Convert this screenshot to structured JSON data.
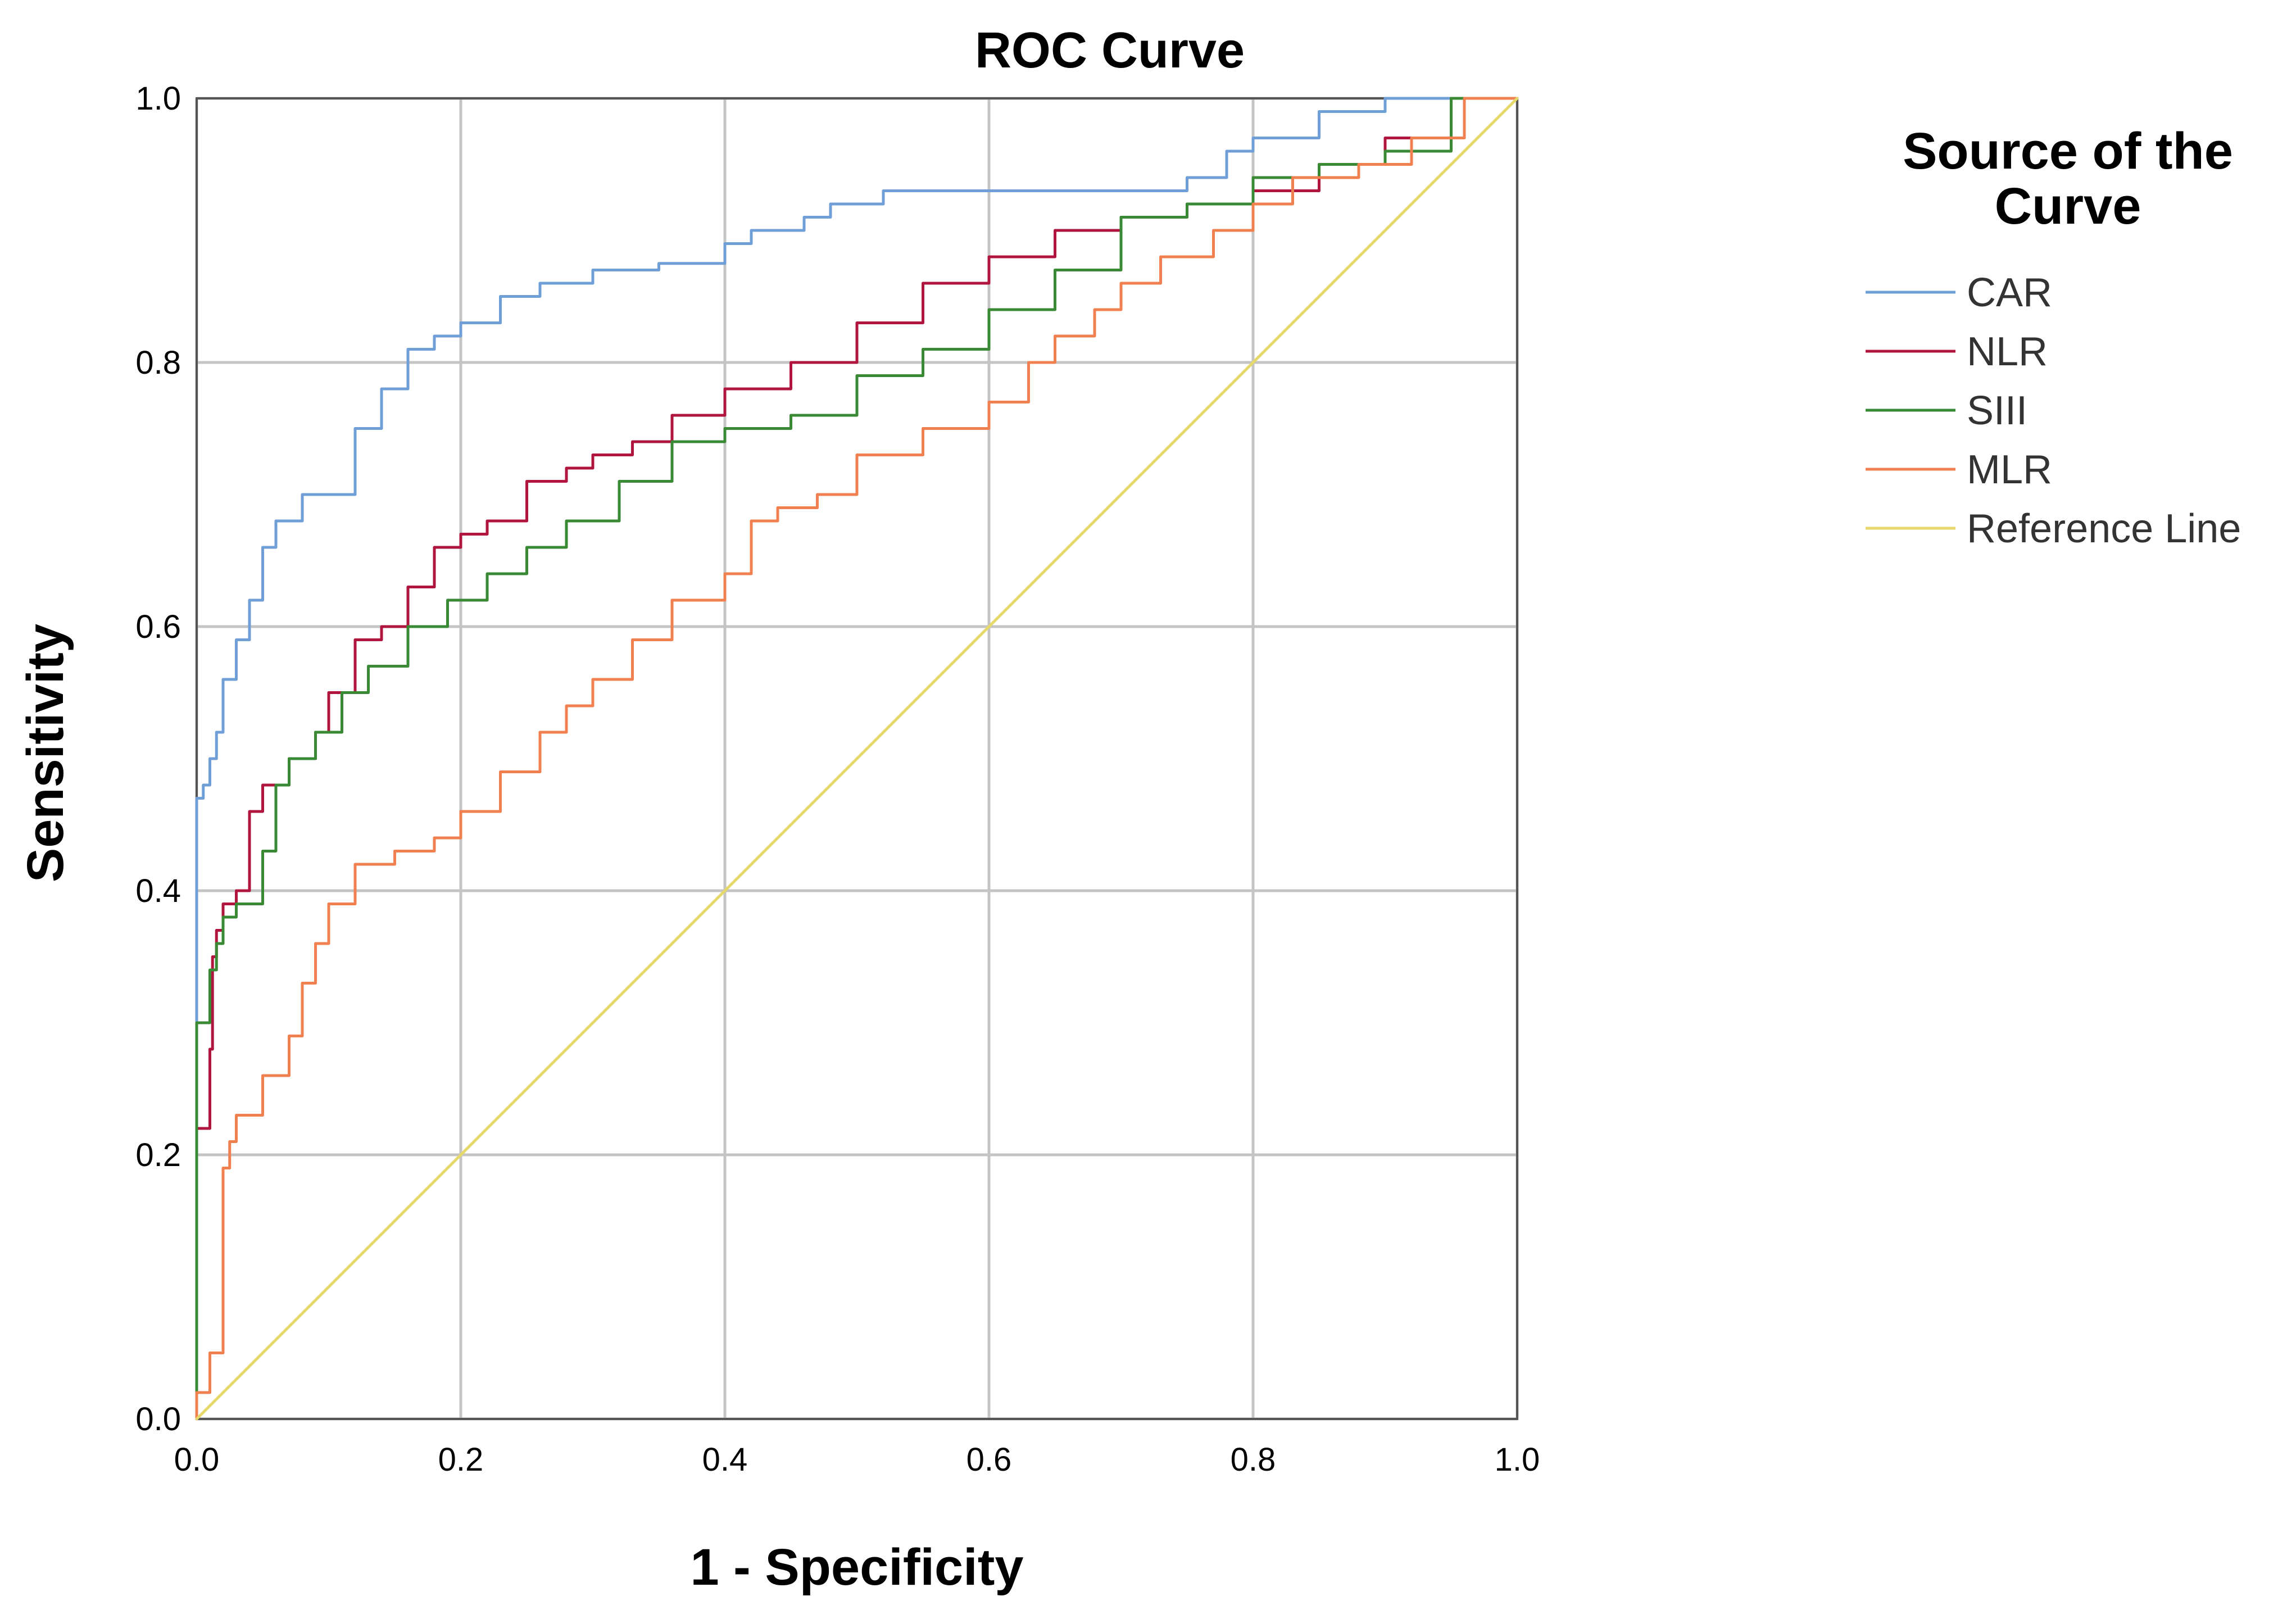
{
  "chart_data": {
    "type": "line",
    "title": "ROC Curve",
    "xlabel": "1 - Specificity",
    "ylabel": "Sensitivity",
    "xlim": [
      0,
      1
    ],
    "ylim": [
      0,
      1
    ],
    "grid": true,
    "x_ticks": [
      "0.0",
      "0.2",
      "0.4",
      "0.6",
      "0.8",
      "1.0"
    ],
    "y_ticks": [
      "0.0",
      "0.2",
      "0.4",
      "0.6",
      "0.8",
      "1.0"
    ],
    "legend": {
      "title_lines": [
        "Source of the",
        "Curve"
      ],
      "placement": "right"
    },
    "series": [
      {
        "name": "CAR",
        "color": "#6f9fd6",
        "points": [
          [
            0,
            0
          ],
          [
            0,
            0.34
          ],
          [
            0.005,
            0.47
          ],
          [
            0.01,
            0.48
          ],
          [
            0.015,
            0.5
          ],
          [
            0.02,
            0.52
          ],
          [
            0.03,
            0.56
          ],
          [
            0.04,
            0.59
          ],
          [
            0.05,
            0.62
          ],
          [
            0.06,
            0.66
          ],
          [
            0.08,
            0.68
          ],
          [
            0.1,
            0.7
          ],
          [
            0.12,
            0.7
          ],
          [
            0.14,
            0.75
          ],
          [
            0.16,
            0.78
          ],
          [
            0.18,
            0.81
          ],
          [
            0.2,
            0.82
          ],
          [
            0.23,
            0.83
          ],
          [
            0.26,
            0.85
          ],
          [
            0.3,
            0.86
          ],
          [
            0.35,
            0.87
          ],
          [
            0.4,
            0.875
          ],
          [
            0.42,
            0.89
          ],
          [
            0.46,
            0.9
          ],
          [
            0.48,
            0.91
          ],
          [
            0.52,
            0.92
          ],
          [
            0.6,
            0.93
          ],
          [
            0.68,
            0.93
          ],
          [
            0.75,
            0.93
          ],
          [
            0.78,
            0.94
          ],
          [
            0.8,
            0.96
          ],
          [
            0.85,
            0.97
          ],
          [
            0.9,
            0.99
          ],
          [
            0.95,
            1.0
          ],
          [
            1.0,
            1.0
          ]
        ]
      },
      {
        "name": "NLR",
        "color": "#b0163d",
        "points": [
          [
            0,
            0
          ],
          [
            0,
            0.21
          ],
          [
            0.01,
            0.22
          ],
          [
            0.012,
            0.28
          ],
          [
            0.015,
            0.35
          ],
          [
            0.02,
            0.37
          ],
          [
            0.03,
            0.39
          ],
          [
            0.04,
            0.4
          ],
          [
            0.05,
            0.46
          ],
          [
            0.07,
            0.48
          ],
          [
            0.09,
            0.5
          ],
          [
            0.1,
            0.52
          ],
          [
            0.12,
            0.55
          ],
          [
            0.14,
            0.59
          ],
          [
            0.16,
            0.6
          ],
          [
            0.18,
            0.63
          ],
          [
            0.2,
            0.66
          ],
          [
            0.22,
            0.67
          ],
          [
            0.25,
            0.68
          ],
          [
            0.28,
            0.71
          ],
          [
            0.3,
            0.72
          ],
          [
            0.33,
            0.73
          ],
          [
            0.36,
            0.74
          ],
          [
            0.4,
            0.76
          ],
          [
            0.45,
            0.78
          ],
          [
            0.5,
            0.8
          ],
          [
            0.55,
            0.83
          ],
          [
            0.6,
            0.86
          ],
          [
            0.65,
            0.88
          ],
          [
            0.7,
            0.9
          ],
          [
            0.75,
            0.91
          ],
          [
            0.8,
            0.92
          ],
          [
            0.85,
            0.93
          ],
          [
            0.9,
            0.95
          ],
          [
            0.95,
            0.97
          ],
          [
            1.0,
            1.0
          ]
        ]
      },
      {
        "name": "SIII",
        "color": "#3a8a35",
        "points": [
          [
            0,
            0
          ],
          [
            0,
            0.27
          ],
          [
            0.01,
            0.3
          ],
          [
            0.015,
            0.34
          ],
          [
            0.02,
            0.36
          ],
          [
            0.03,
            0.38
          ],
          [
            0.05,
            0.39
          ],
          [
            0.06,
            0.43
          ],
          [
            0.07,
            0.48
          ],
          [
            0.09,
            0.5
          ],
          [
            0.11,
            0.52
          ],
          [
            0.13,
            0.55
          ],
          [
            0.16,
            0.57
          ],
          [
            0.19,
            0.6
          ],
          [
            0.22,
            0.62
          ],
          [
            0.25,
            0.64
          ],
          [
            0.28,
            0.66
          ],
          [
            0.32,
            0.68
          ],
          [
            0.36,
            0.71
          ],
          [
            0.4,
            0.74
          ],
          [
            0.45,
            0.75
          ],
          [
            0.5,
            0.76
          ],
          [
            0.55,
            0.79
          ],
          [
            0.6,
            0.81
          ],
          [
            0.65,
            0.84
          ],
          [
            0.7,
            0.87
          ],
          [
            0.75,
            0.91
          ],
          [
            0.8,
            0.92
          ],
          [
            0.85,
            0.94
          ],
          [
            0.9,
            0.95
          ],
          [
            0.95,
            0.96
          ],
          [
            1.0,
            1.0
          ]
        ]
      },
      {
        "name": "MLR",
        "color": "#f08050",
        "points": [
          [
            0,
            0
          ],
          [
            0.01,
            0.02
          ],
          [
            0.02,
            0.05
          ],
          [
            0.02,
            0.13
          ],
          [
            0.025,
            0.19
          ],
          [
            0.03,
            0.21
          ],
          [
            0.05,
            0.23
          ],
          [
            0.07,
            0.26
          ],
          [
            0.08,
            0.29
          ],
          [
            0.09,
            0.33
          ],
          [
            0.1,
            0.36
          ],
          [
            0.12,
            0.39
          ],
          [
            0.15,
            0.42
          ],
          [
            0.18,
            0.43
          ],
          [
            0.2,
            0.44
          ],
          [
            0.23,
            0.46
          ],
          [
            0.26,
            0.49
          ],
          [
            0.28,
            0.52
          ],
          [
            0.3,
            0.54
          ],
          [
            0.33,
            0.56
          ],
          [
            0.36,
            0.59
          ],
          [
            0.4,
            0.62
          ],
          [
            0.42,
            0.64
          ],
          [
            0.44,
            0.68
          ],
          [
            0.47,
            0.69
          ],
          [
            0.5,
            0.7
          ],
          [
            0.55,
            0.73
          ],
          [
            0.6,
            0.75
          ],
          [
            0.63,
            0.77
          ],
          [
            0.65,
            0.8
          ],
          [
            0.68,
            0.82
          ],
          [
            0.7,
            0.84
          ],
          [
            0.73,
            0.86
          ],
          [
            0.77,
            0.88
          ],
          [
            0.8,
            0.9
          ],
          [
            0.83,
            0.92
          ],
          [
            0.88,
            0.94
          ],
          [
            0.92,
            0.95
          ],
          [
            0.96,
            0.97
          ],
          [
            1.0,
            1.0
          ]
        ]
      },
      {
        "name": "Reference Line",
        "color": "#e6d86a",
        "points": [
          [
            0,
            0
          ],
          [
            1,
            1
          ]
        ]
      }
    ]
  }
}
